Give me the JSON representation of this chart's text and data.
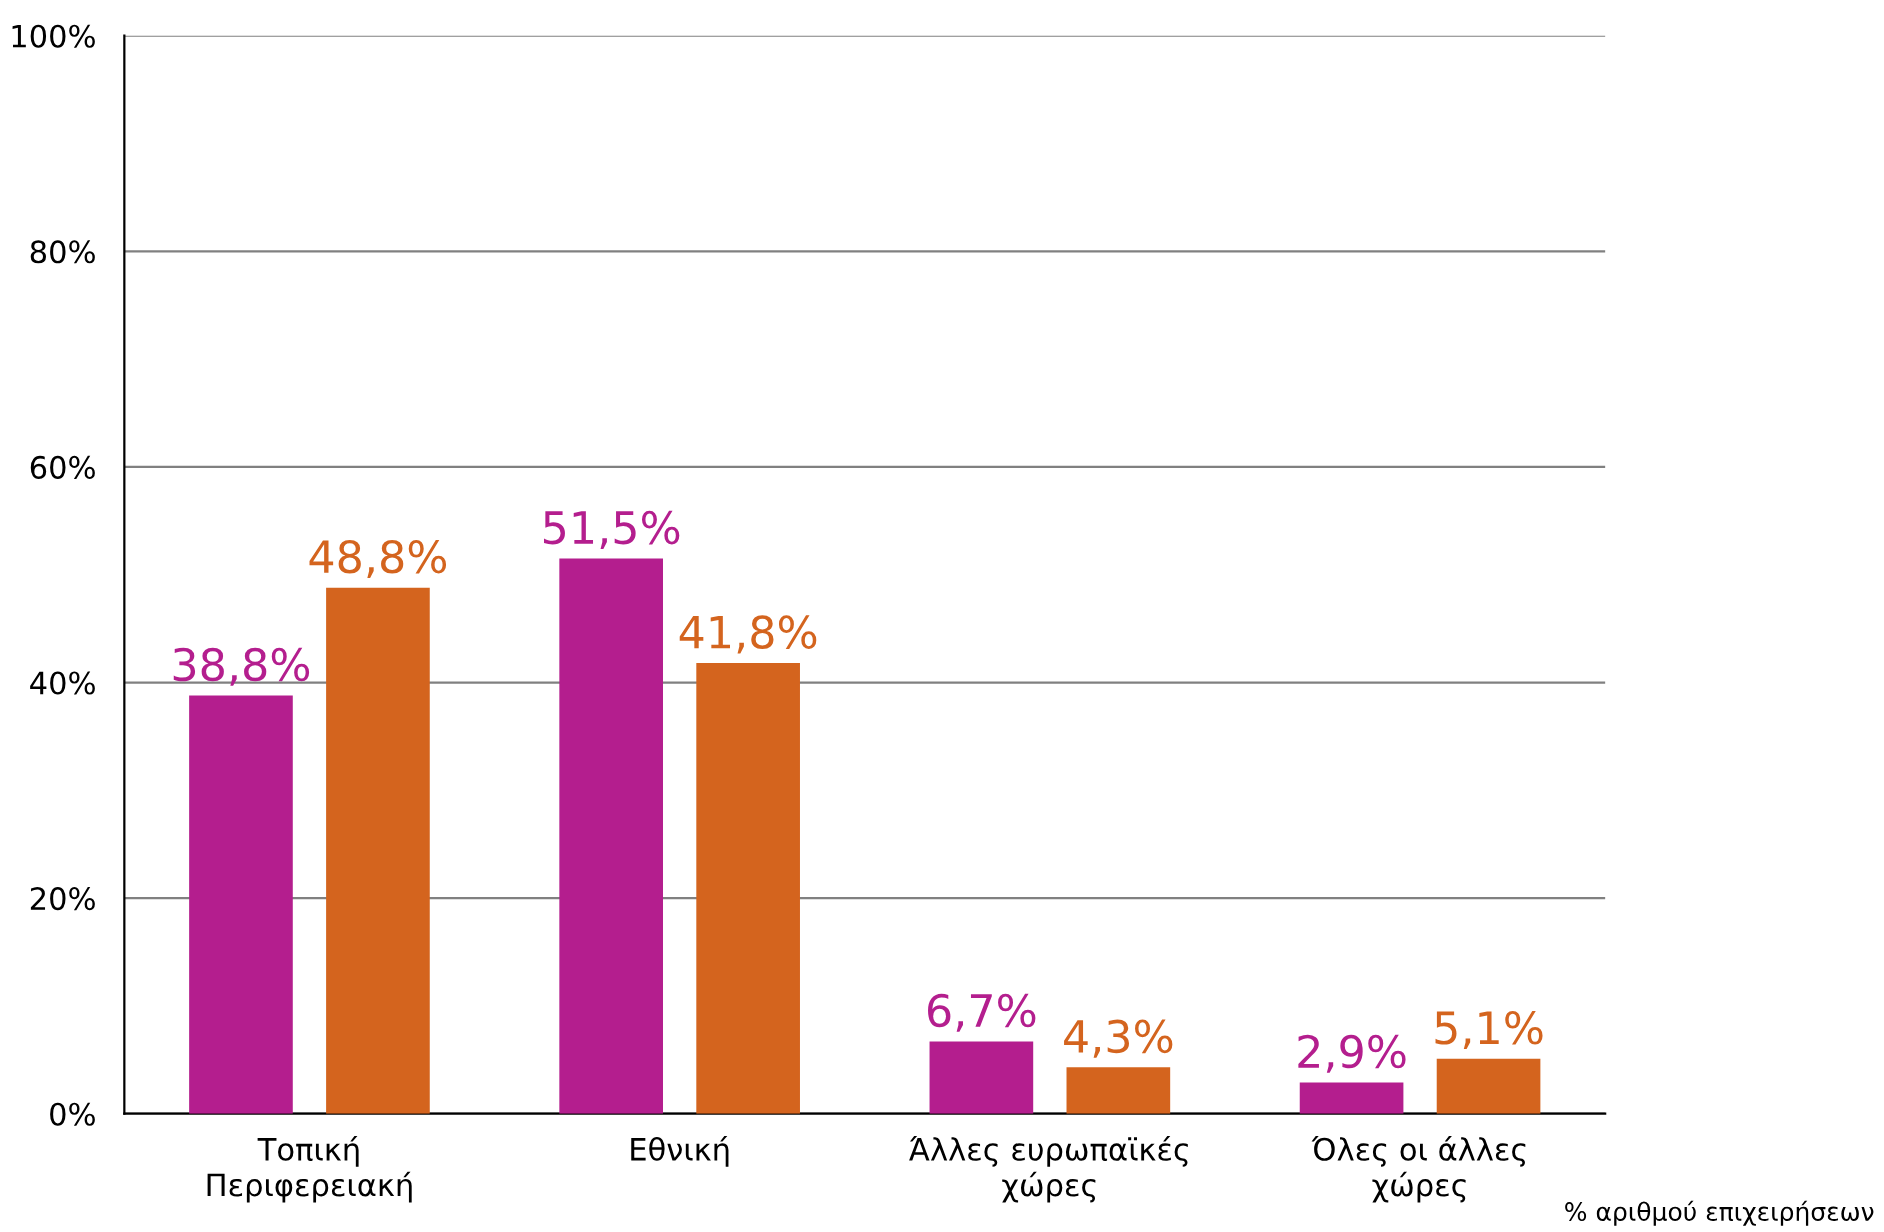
{
  "chart_data": {
    "type": "bar",
    "categories": [
      "Τοπική\nΠεριφερειακή",
      "Εθνική",
      "Άλλες ευρωπαϊκές\nχώρες",
      "Όλες οι άλλες\nχώρες"
    ],
    "series": [
      {
        "color": "#b41e8e",
        "values": [
          38.8,
          51.5,
          6.7,
          2.9
        ],
        "value_labels": [
          "38,8%",
          "51,5%",
          "6,7%",
          "2,9%"
        ]
      },
      {
        "color": "#d4641e",
        "values": [
          48.8,
          41.8,
          4.3,
          5.1
        ],
        "value_labels": [
          "48,8%",
          "41,8%",
          "4,3%",
          "5,1%"
        ]
      }
    ],
    "ylim": [
      0,
      100
    ],
    "yticks": [
      {
        "value": 0,
        "label": "0%"
      },
      {
        "value": 20,
        "label": "20%"
      },
      {
        "value": 40,
        "label": "40%"
      },
      {
        "value": 60,
        "label": "60%"
      },
      {
        "value": 80,
        "label": "80%"
      },
      {
        "value": 100,
        "label": "100%"
      }
    ],
    "grid": "y",
    "annotations": [
      "% αριθμού επιχειρήσεων"
    ]
  }
}
